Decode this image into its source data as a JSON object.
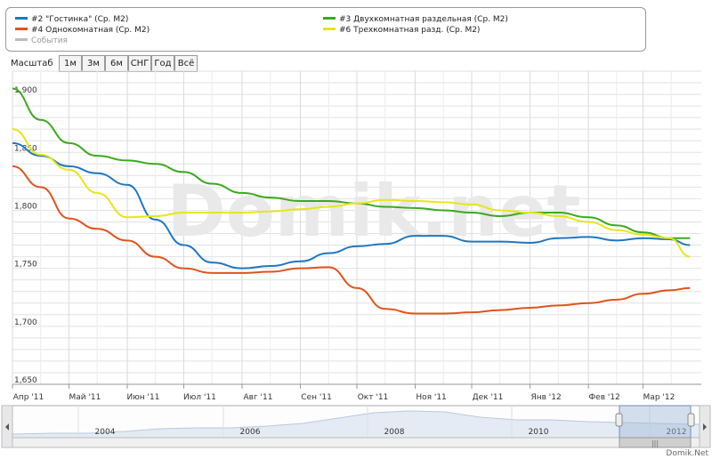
{
  "legend": {
    "items": [
      {
        "label": "#2 \"Гостинка\" (Ср. М2)",
        "color": "#1f77c0"
      },
      {
        "label": "#4 Однокомнатная (Ср. М2)",
        "color": "#e0531b"
      },
      {
        "label": "События",
        "color": "#bbbbbb"
      },
      {
        "label": "#3 Двухкомнатная раздельная (Ср. М2)",
        "color": "#3aaa1e"
      },
      {
        "label": "#6 Трехкомнатная разд. (Ср. М2)",
        "color": "#e6e619"
      }
    ]
  },
  "toolbar": {
    "label": "Масштаб",
    "buttons": [
      "1м",
      "3м",
      "6м",
      "СНГ",
      "Год",
      "Всё"
    ]
  },
  "watermark": "Domik.net",
  "credit": "Domik.Net",
  "chart_data": {
    "type": "line",
    "ylim": [
      1650,
      1920
    ],
    "y_ticks": [
      "1,650",
      "1,700",
      "1,750",
      "1,800",
      "1,850",
      "1,900"
    ],
    "x_ticks": [
      "Апр '11",
      "Май '11",
      "Июн '11",
      "Июл '11",
      "Авг '11",
      "Сен '11",
      "Окт '11",
      "Ноя '11",
      "Дек '11",
      "Янв '12",
      "Фев '12",
      "Мар '12"
    ],
    "x": [
      "2011-04-01",
      "2011-04-16",
      "2011-05-01",
      "2011-05-16",
      "2011-06-01",
      "2011-06-16",
      "2011-07-01",
      "2011-07-16",
      "2011-08-01",
      "2011-08-16",
      "2011-09-01",
      "2011-09-16",
      "2011-10-01",
      "2011-10-16",
      "2011-11-01",
      "2011-11-16",
      "2011-12-01",
      "2011-12-16",
      "2012-01-01",
      "2012-01-16",
      "2012-02-01",
      "2012-02-16",
      "2012-03-01",
      "2012-03-15",
      "2012-03-26"
    ],
    "series": [
      {
        "name": "#2 \"Гостинка\" (Ср. М2)",
        "color": "#1f77c0",
        "values": [
          1858,
          1847,
          1838,
          1832,
          1822,
          1792,
          1770,
          1755,
          1750,
          1752,
          1756,
          1763,
          1769,
          1771,
          1778,
          1778,
          1773,
          1773,
          1772,
          1776,
          1777,
          1774,
          1776,
          1775,
          1770
        ]
      },
      {
        "name": "#4 Однокомнатная (Ср. М2)",
        "color": "#e0531b",
        "values": [
          1838,
          1820,
          1793,
          1784,
          1774,
          1760,
          1750,
          1746,
          1746,
          1747,
          1750,
          1751,
          1733,
          1715,
          1711,
          1711,
          1712,
          1714,
          1716,
          1718,
          1720,
          1723,
          1728,
          1731,
          1733
        ]
      },
      {
        "name": "#3 Двухкомнатная раздельная (Ср. М2)",
        "color": "#3aaa1e",
        "values": [
          1905,
          1878,
          1858,
          1847,
          1843,
          1840,
          1833,
          1823,
          1815,
          1811,
          1808,
          1808,
          1806,
          1803,
          1802,
          1800,
          1798,
          1795,
          1798,
          1798,
          1794,
          1787,
          1781,
          1776,
          1776
        ]
      },
      {
        "name": "#6 Трехкомнатная разд. (Ср. М2)",
        "color": "#e6e619",
        "values": [
          1870,
          1848,
          1835,
          1815,
          1794,
          1795,
          1798,
          1798,
          1798,
          1799,
          1801,
          1803,
          1806,
          1809,
          1808,
          1807,
          1805,
          1800,
          1798,
          1795,
          1790,
          1783,
          1779,
          1776,
          1760
        ]
      }
    ],
    "navigator": {
      "years": [
        "2004",
        "2006",
        "2008",
        "2010",
        "2012"
      ]
    }
  }
}
